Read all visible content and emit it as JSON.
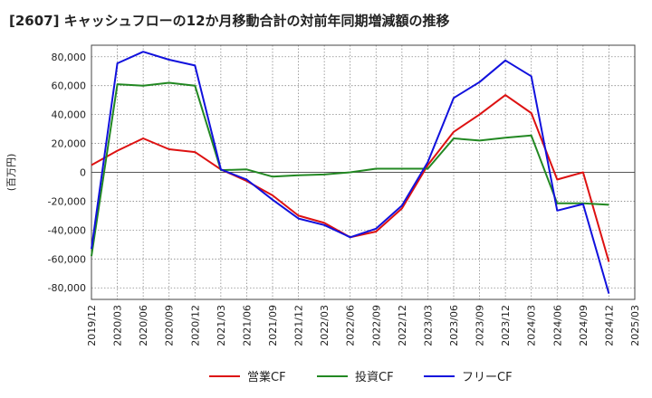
{
  "chart_data": {
    "type": "line",
    "title": "[2607]  キャッシュフローの12か月移動合計の対前年同期増減額の推移",
    "ylabel": "(百万円)",
    "xlabel": "",
    "x": [
      "2019/12",
      "2020/03",
      "2020/06",
      "2020/09",
      "2020/12",
      "2021/03",
      "2021/06",
      "2021/09",
      "2021/12",
      "2022/03",
      "2022/06",
      "2022/09",
      "2022/12",
      "2023/03",
      "2023/06",
      "2023/09",
      "2023/12",
      "2024/03",
      "2024/06",
      "2024/09",
      "2024/12"
    ],
    "x_ticks": [
      "2019/12",
      "2020/03",
      "2020/06",
      "2020/09",
      "2020/12",
      "2021/03",
      "2021/06",
      "2021/09",
      "2021/12",
      "2022/03",
      "2022/06",
      "2022/09",
      "2022/12",
      "2023/03",
      "2023/06",
      "2023/09",
      "2023/12",
      "2024/03",
      "2024/06",
      "2024/09",
      "2024/12",
      "2025/03"
    ],
    "y_ticks": [
      80000,
      60000,
      40000,
      20000,
      0,
      -20000,
      -40000,
      -60000,
      -80000
    ],
    "y_tick_labels": [
      "80,000",
      "60,000",
      "40,000",
      "20,000",
      "0",
      "-20,000",
      "-40,000",
      "-60,000",
      "-80,000"
    ],
    "ylim": [
      -88000,
      88000
    ],
    "grid": true,
    "legend_position": "bottom",
    "series": [
      {
        "name": "営業CF",
        "color": "#dd1111",
        "values": [
          5000,
          15000,
          23500,
          16000,
          14000,
          2000,
          -6000,
          -16000,
          -30000,
          -35000,
          -45000,
          -41000,
          -25000,
          5000,
          28000,
          40000,
          53500,
          41000,
          -5000,
          0,
          -62000
        ]
      },
      {
        "name": "投資CF",
        "color": "#228822",
        "values": [
          -58000,
          61000,
          60000,
          62000,
          60000,
          1500,
          2000,
          -3000,
          -2000,
          -1500,
          0,
          2500,
          2500,
          2500,
          23500,
          22000,
          24000,
          25500,
          -21500,
          -21500,
          -22500
        ]
      },
      {
        "name": "フリーCF",
        "color": "#1111dd",
        "values": [
          -53000,
          75500,
          83500,
          78000,
          74000,
          2000,
          -5000,
          -19000,
          -32000,
          -36500,
          -45000,
          -39000,
          -23000,
          7000,
          51500,
          62500,
          77500,
          66500,
          -26500,
          -22000,
          -84000
        ]
      }
    ]
  }
}
